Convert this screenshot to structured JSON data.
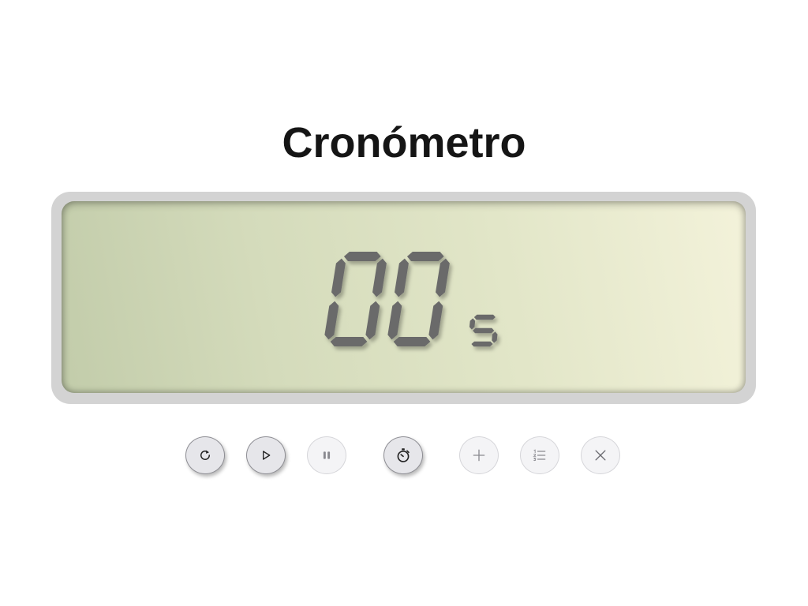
{
  "title": "Cronómetro",
  "display": {
    "digits": "00",
    "unit": "s"
  },
  "colors": {
    "segment": "#6b6b6b",
    "frame": "#d3d3d3",
    "lcd_left": "#c2ccaa",
    "lcd_right": "#f3f2da"
  },
  "controls": [
    {
      "name": "reset-button",
      "icon": "refresh-icon",
      "state": "enabled"
    },
    {
      "name": "play-button",
      "icon": "play-icon",
      "state": "enabled"
    },
    {
      "name": "pause-button",
      "icon": "pause-icon",
      "state": "disabled"
    },
    {
      "name": "lap-button",
      "icon": "stopwatch-icon",
      "state": "enabled"
    },
    {
      "name": "add-button",
      "icon": "plus-icon",
      "state": "disabled"
    },
    {
      "name": "list-button",
      "icon": "list-icon",
      "state": "disabled"
    },
    {
      "name": "close-button",
      "icon": "close-icon",
      "state": "disabled"
    }
  ]
}
